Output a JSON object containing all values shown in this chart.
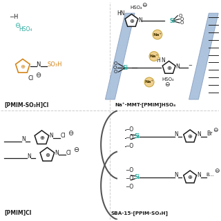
{
  "background_color": "#ffffff",
  "figure_width": 3.2,
  "figure_height": 3.2,
  "dpi": 100,
  "teal_color": "#2aab9e",
  "orange_color": "#d4861a",
  "gray_color": "#555555",
  "light_blue_fill": "#ccd9ee",
  "light_blue_edge": "#8899bb",
  "na_circle_color": "#f0d090",
  "na_edge_color": "#c8a840",
  "line_color": "#1a1a1a",
  "si_color": "#2aab9e",
  "label_top_left": "[PMIM-SO₃H]Cl",
  "label_top_right": "Na⁺-MMT-[PMIM]HSO₄",
  "label_bot_left": "[PMIM]Cl",
  "label_bot_right": "SBA-15-[PPIM-SO₃H]"
}
